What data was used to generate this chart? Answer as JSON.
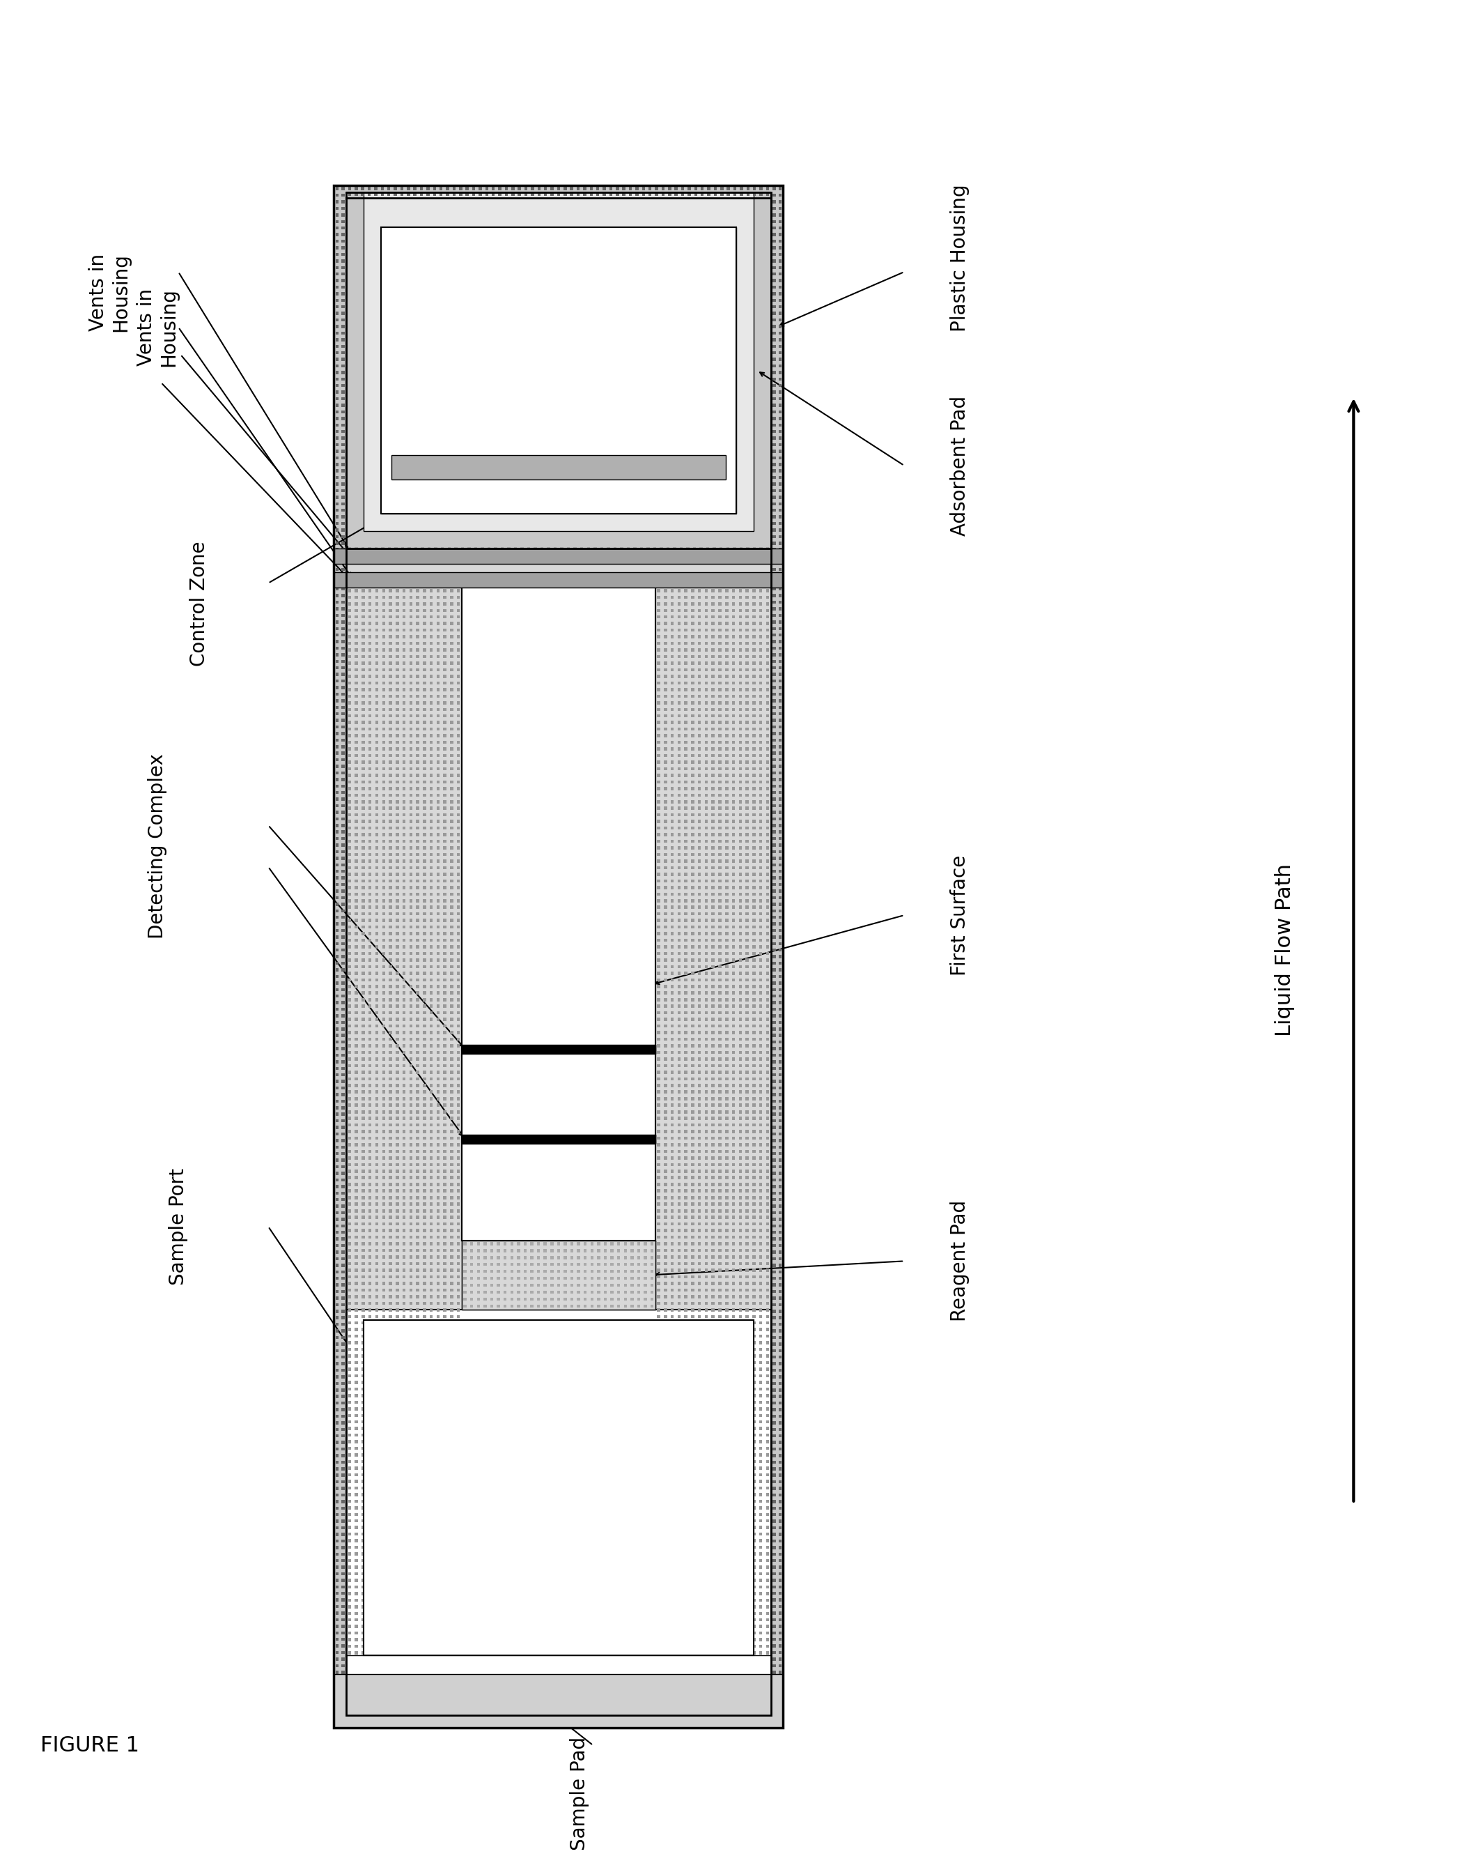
{
  "fig_width": 21.09,
  "fig_height": 26.73,
  "bg_color": "#ffffff",
  "figure_label": "FIGURE 1",
  "arrow_label": "Liquid Flow Path",
  "colors": {
    "outer_housing": "#c8c8c8",
    "inner_housing": "#d8d8d8",
    "vent_strip_dark": "#a0a0a0",
    "vent_strip_light": "#e8e8e8",
    "membrane": "#f0f0f0",
    "adsorbent_top": "#d0d0d0",
    "adsorbent_inner": "#e8e8e8",
    "control_bar": "#b0b0b0",
    "nitro_membrane": "#ffffff",
    "test_bar": "#000000",
    "reagent_pad": "#d8d8d8",
    "sample_pad_bg": "#d0d0d0",
    "sample_port_bg": "#c8c8c8",
    "circle_outer": "#888888",
    "circle_inner": "#c8c8c8",
    "circle_center": "#a0a0a0",
    "hatch_color": "#888888",
    "border": "#000000"
  },
  "labels": {
    "vents": "Vents in\nHousing",
    "plastic": "Plastic Housing",
    "adsorbent": "Adsorbent Pad",
    "control": "Control Zone",
    "detecting": "Detecting Complex",
    "first_surface": "First Surface",
    "sample_port": "Sample Port",
    "reagent_pad": "Reagent Pad",
    "sample_pad": "Sample Pad"
  }
}
